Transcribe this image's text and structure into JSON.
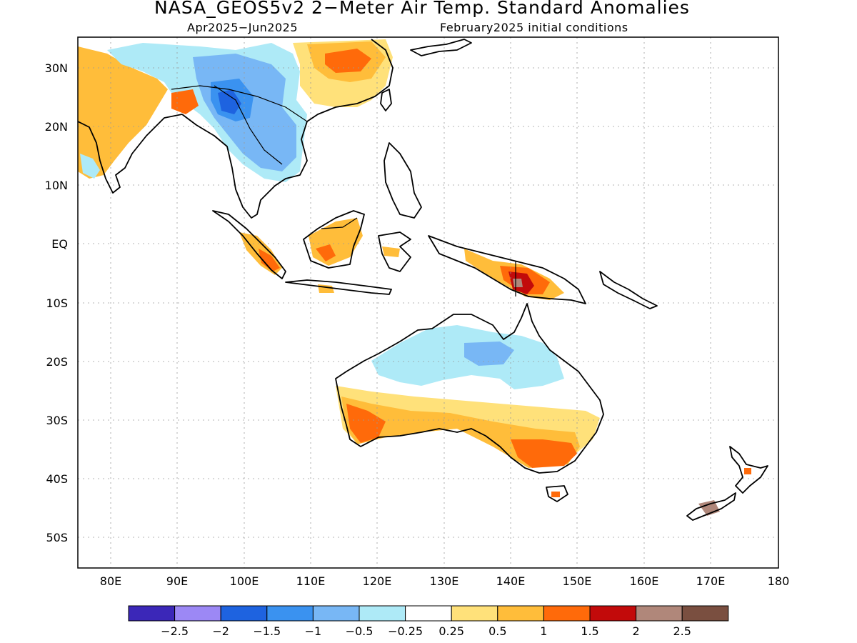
{
  "title": "NASA_GEOS5v2 2−Meter Air Temp. Standard Anomalies",
  "subtitle_left": "Apr2025−Jun2025",
  "subtitle_right": "February2025 initial conditions",
  "map": {
    "lon_range": [
      75,
      180
    ],
    "lat_range": [
      -55,
      35
    ],
    "lon_ticks": [
      "80E",
      "90E",
      "100E",
      "110E",
      "120E",
      "130E",
      "140E",
      "150E",
      "160E",
      "170E",
      "180"
    ],
    "lat_ticks": [
      "30N",
      "20N",
      "10N",
      "EQ",
      "10S",
      "20S",
      "30S",
      "40S",
      "50S"
    ]
  },
  "colorbar": {
    "colors": [
      "#3b27b8",
      "#9c88f5",
      "#1e63e0",
      "#3a92f0",
      "#78b7f5",
      "#aeeaf7",
      "#ffffff",
      "#ffe17a",
      "#ffbd3a",
      "#ff6a0a",
      "#c20a0a",
      "#b0877a",
      "#7a4f40"
    ],
    "labels": [
      "−2.5",
      "−2",
      "−1.5",
      "−1",
      "−0.5",
      "−0.25",
      "0.25",
      "0.5",
      "1",
      "1.5",
      "2",
      "2.5"
    ]
  }
}
